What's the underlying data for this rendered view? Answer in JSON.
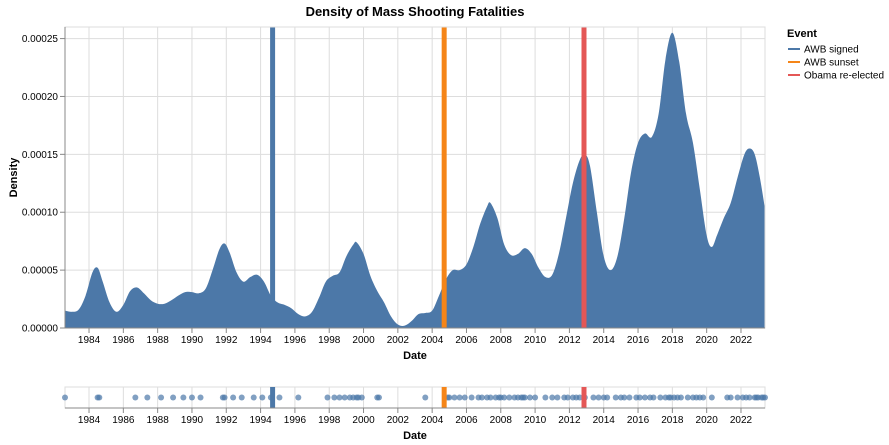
{
  "chart_data": {
    "type": "area",
    "title": "Density of Mass Shooting Fatalities",
    "xlabel": "Date",
    "ylabel": "Density",
    "xlim": [
      1982.6,
      2023.4
    ],
    "ylim": [
      0,
      0.00026
    ],
    "x_ticks": [
      "1984",
      "1986",
      "1988",
      "1990",
      "1992",
      "1994",
      "1996",
      "1998",
      "2000",
      "2002",
      "2004",
      "2006",
      "2008",
      "2010",
      "2012",
      "2014",
      "2016",
      "2018",
      "2020",
      "2022"
    ],
    "y_ticks": [
      "0.00000",
      "0.00005",
      "0.00010",
      "0.00015",
      "0.00020",
      "0.00025"
    ],
    "grid": true,
    "area_color": "#4c78a8",
    "density": [
      [
        1982.6,
        1.5e-05
      ],
      [
        1983.0,
        1.4e-05
      ],
      [
        1983.4,
        1.6e-05
      ],
      [
        1983.8,
        2.8e-05
      ],
      [
        1984.2,
        4.8e-05
      ],
      [
        1984.5,
        5.2e-05
      ],
      [
        1984.8,
        4e-05
      ],
      [
        1985.2,
        2.2e-05
      ],
      [
        1985.6,
        1.4e-05
      ],
      [
        1986.0,
        2e-05
      ],
      [
        1986.4,
        3.2e-05
      ],
      [
        1986.8,
        3.5e-05
      ],
      [
        1987.2,
        3e-05
      ],
      [
        1987.6,
        2.4e-05
      ],
      [
        1988.0,
        2.1e-05
      ],
      [
        1988.4,
        2.1e-05
      ],
      [
        1988.8,
        2.4e-05
      ],
      [
        1989.2,
        2.8e-05
      ],
      [
        1989.6,
        3.1e-05
      ],
      [
        1990.0,
        3.1e-05
      ],
      [
        1990.4,
        3e-05
      ],
      [
        1990.8,
        3.4e-05
      ],
      [
        1991.2,
        5e-05
      ],
      [
        1991.6,
        6.8e-05
      ],
      [
        1991.9,
        7.3e-05
      ],
      [
        1992.2,
        6.5e-05
      ],
      [
        1992.6,
        4.8e-05
      ],
      [
        1993.0,
        4e-05
      ],
      [
        1993.4,
        4.4e-05
      ],
      [
        1993.8,
        4.6e-05
      ],
      [
        1994.2,
        4e-05
      ],
      [
        1994.6,
        2.8e-05
      ],
      [
        1995.0,
        2.2e-05
      ],
      [
        1995.4,
        2e-05
      ],
      [
        1995.8,
        1.7e-05
      ],
      [
        1996.2,
        1.2e-05
      ],
      [
        1996.6,
        1e-05
      ],
      [
        1997.0,
        1.4e-05
      ],
      [
        1997.4,
        2.6e-05
      ],
      [
        1997.8,
        4e-05
      ],
      [
        1998.2,
        4.5e-05
      ],
      [
        1998.6,
        4.8e-05
      ],
      [
        1999.0,
        6.2e-05
      ],
      [
        1999.4,
        7.2e-05
      ],
      [
        1999.6,
        7.4e-05
      ],
      [
        2000.0,
        6.4e-05
      ],
      [
        2000.4,
        4.5e-05
      ],
      [
        2000.8,
        3.2e-05
      ],
      [
        2001.2,
        2.2e-05
      ],
      [
        2001.6,
        1e-05
      ],
      [
        2002.0,
        3e-06
      ],
      [
        2002.4,
        2e-06
      ],
      [
        2002.8,
        6e-06
      ],
      [
        2003.2,
        1.2e-05
      ],
      [
        2003.6,
        1.3e-05
      ],
      [
        2004.0,
        1.5e-05
      ],
      [
        2004.4,
        2.8e-05
      ],
      [
        2004.8,
        4.2e-05
      ],
      [
        2005.2,
        5e-05
      ],
      [
        2005.6,
        5e-05
      ],
      [
        2006.0,
        5.5e-05
      ],
      [
        2006.4,
        7e-05
      ],
      [
        2006.8,
        9e-05
      ],
      [
        2007.2,
        0.000105
      ],
      [
        2007.4,
        0.000108
      ],
      [
        2007.8,
        9.5e-05
      ],
      [
        2008.2,
        7.2e-05
      ],
      [
        2008.6,
        6.3e-05
      ],
      [
        2009.0,
        6.4e-05
      ],
      [
        2009.4,
        6.9e-05
      ],
      [
        2009.8,
        6.4e-05
      ],
      [
        2010.2,
        5.2e-05
      ],
      [
        2010.6,
        4.4e-05
      ],
      [
        2011.0,
        4.6e-05
      ],
      [
        2011.4,
        6.5e-05
      ],
      [
        2011.8,
        9.5e-05
      ],
      [
        2012.2,
        0.000125
      ],
      [
        2012.6,
        0.000145
      ],
      [
        2012.9,
        0.00015
      ],
      [
        2013.2,
        0.00014
      ],
      [
        2013.6,
        0.0001
      ],
      [
        2014.0,
        6.2e-05
      ],
      [
        2014.4,
        5e-05
      ],
      [
        2014.8,
        6.2e-05
      ],
      [
        2015.2,
        9.5e-05
      ],
      [
        2015.6,
        0.000135
      ],
      [
        2016.0,
        0.00016
      ],
      [
        2016.4,
        0.000168
      ],
      [
        2016.8,
        0.000165
      ],
      [
        2017.2,
        0.000185
      ],
      [
        2017.6,
        0.000232
      ],
      [
        2018.0,
        0.000255
      ],
      [
        2018.4,
        0.00023
      ],
      [
        2018.8,
        0.000185
      ],
      [
        2019.2,
        0.00016
      ],
      [
        2019.6,
        0.00012
      ],
      [
        2020.0,
        8e-05
      ],
      [
        2020.3,
        7e-05
      ],
      [
        2020.6,
        8e-05
      ],
      [
        2021.0,
        9.5e-05
      ],
      [
        2021.4,
        0.000108
      ],
      [
        2021.8,
        0.00013
      ],
      [
        2022.2,
        0.00015
      ],
      [
        2022.5,
        0.000155
      ],
      [
        2022.8,
        0.00015
      ],
      [
        2023.1,
        0.00013
      ],
      [
        2023.4,
        0.000103
      ]
    ],
    "events": [
      {
        "name": "AWB signed",
        "x": 1994.7,
        "color": "#4c78a8"
      },
      {
        "name": "AWB sunset",
        "x": 2004.7,
        "color": "#f58518"
      },
      {
        "name": "Obama re-elected",
        "x": 2012.85,
        "color": "#e45756"
      }
    ],
    "legend": {
      "title": "Event",
      "placement": "top-right"
    },
    "strip": {
      "xlabel": "Date",
      "point_color": "#4c78a8",
      "points": [
        1982.6,
        1984.5,
        1984.6,
        1986.7,
        1987.4,
        1988.2,
        1988.9,
        1989.5,
        1990.0,
        1990.5,
        1991.8,
        1991.9,
        1992.4,
        1992.9,
        1993.6,
        1994.1,
        1994.6,
        1995.1,
        1996.2,
        1997.9,
        1998.3,
        1998.6,
        1998.9,
        1999.2,
        1999.4,
        1999.6,
        1999.7,
        1999.9,
        2000.8,
        2000.9,
        2003.6,
        2004.9,
        2005.0,
        2005.3,
        2005.6,
        2005.9,
        2006.3,
        2006.7,
        2006.9,
        2007.2,
        2007.4,
        2007.7,
        2007.9,
        2008.0,
        2008.2,
        2008.5,
        2008.8,
        2009.0,
        2009.2,
        2009.3,
        2009.4,
        2009.7,
        2010.0,
        2010.6,
        2011.0,
        2011.3,
        2011.7,
        2011.9,
        2012.2,
        2012.4,
        2012.6,
        2012.9,
        2013.4,
        2013.7,
        2014.0,
        2014.2,
        2014.7,
        2015.0,
        2015.2,
        2015.5,
        2015.9,
        2016.1,
        2016.4,
        2016.7,
        2016.9,
        2017.3,
        2017.6,
        2017.8,
        2017.9,
        2018.1,
        2018.3,
        2018.5,
        2018.9,
        2019.2,
        2019.4,
        2019.6,
        2019.8,
        2020.3,
        2021.2,
        2021.4,
        2021.8,
        2022.1,
        2022.3,
        2022.5,
        2022.8,
        2022.9,
        2023.0,
        2023.2,
        2023.3,
        2023.4
      ]
    }
  }
}
